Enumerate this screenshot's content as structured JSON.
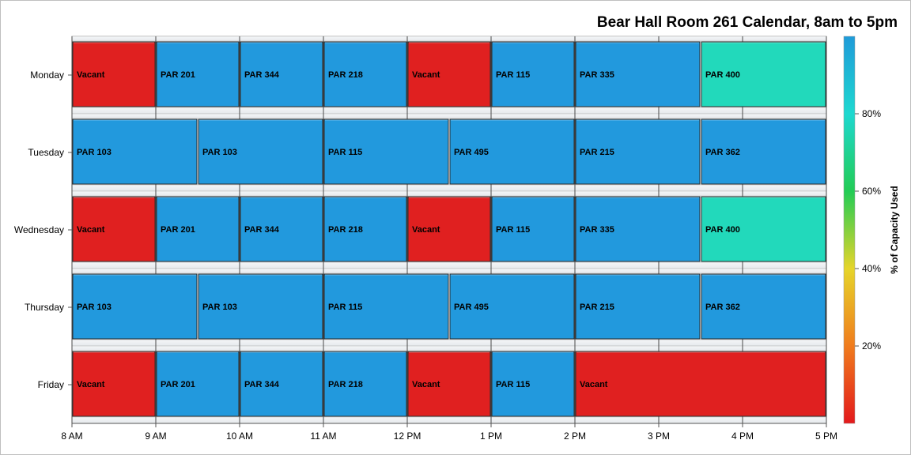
{
  "chart_data": {
    "type": "bar",
    "orientation": "horizontal-timeline",
    "title": "Bear Hall Room 261 Calendar, 8am to 5pm",
    "days": [
      "Monday",
      "Tuesday",
      "Wednesday",
      "Thursday",
      "Friday"
    ],
    "x_ticks": [
      {
        "hour": 8,
        "label": "8 AM"
      },
      {
        "hour": 9,
        "label": "9 AM"
      },
      {
        "hour": 10,
        "label": "10 AM"
      },
      {
        "hour": 11,
        "label": "11 AM"
      },
      {
        "hour": 12,
        "label": "12 PM"
      },
      {
        "hour": 13,
        "label": "1 PM"
      },
      {
        "hour": 14,
        "label": "2 PM"
      },
      {
        "hour": 15,
        "label": "3 PM"
      },
      {
        "hour": 16,
        "label": "4 PM"
      },
      {
        "hour": 17,
        "label": "5 PM"
      }
    ],
    "xlim": [
      8,
      17
    ],
    "colorbar": {
      "title": "% of Capacity Used",
      "range": [
        0,
        100
      ],
      "ticks": [
        {
          "value": 20,
          "label": "20%"
        },
        {
          "value": 40,
          "label": "40%"
        },
        {
          "value": 60,
          "label": "60%"
        },
        {
          "value": 80,
          "label": "80%"
        }
      ],
      "gradient": [
        "#e31a1c",
        "#f07c1d",
        "#e6d52a",
        "#22cc55",
        "#1ed8d0",
        "#1f9bd9"
      ]
    },
    "colors": {
      "vacant": "#e02020",
      "full": "#2299dd",
      "mid": "#22d9bb"
    },
    "schedule": [
      {
        "day": "Monday",
        "blocks": [
          {
            "start": 8,
            "end": 9,
            "label": "Vacant",
            "capacity": 0
          },
          {
            "start": 9,
            "end": 10,
            "label": "PAR 201",
            "capacity": 100
          },
          {
            "start": 10,
            "end": 11,
            "label": "PAR 344",
            "capacity": 100
          },
          {
            "start": 11,
            "end": 12,
            "label": "PAR 218",
            "capacity": 100
          },
          {
            "start": 12,
            "end": 13,
            "label": "Vacant",
            "capacity": 0
          },
          {
            "start": 13,
            "end": 14,
            "label": "PAR 115",
            "capacity": 100
          },
          {
            "start": 14,
            "end": 15.5,
            "label": "PAR 335",
            "capacity": 100
          },
          {
            "start": 15.5,
            "end": 17,
            "label": "PAR 400",
            "capacity": 85
          }
        ]
      },
      {
        "day": "Tuesday",
        "blocks": [
          {
            "start": 8,
            "end": 9.5,
            "label": "PAR 103",
            "capacity": 100
          },
          {
            "start": 9.5,
            "end": 11,
            "label": "PAR 103",
            "capacity": 100
          },
          {
            "start": 11,
            "end": 12.5,
            "label": "PAR 115",
            "capacity": 100
          },
          {
            "start": 12.5,
            "end": 14,
            "label": "PAR 495",
            "capacity": 100
          },
          {
            "start": 14,
            "end": 15.5,
            "label": "PAR 215",
            "capacity": 100
          },
          {
            "start": 15.5,
            "end": 17,
            "label": "PAR 362",
            "capacity": 100
          }
        ]
      },
      {
        "day": "Wednesday",
        "blocks": [
          {
            "start": 8,
            "end": 9,
            "label": "Vacant",
            "capacity": 0
          },
          {
            "start": 9,
            "end": 10,
            "label": "PAR 201",
            "capacity": 100
          },
          {
            "start": 10,
            "end": 11,
            "label": "PAR 344",
            "capacity": 100
          },
          {
            "start": 11,
            "end": 12,
            "label": "PAR 218",
            "capacity": 100
          },
          {
            "start": 12,
            "end": 13,
            "label": "Vacant",
            "capacity": 0
          },
          {
            "start": 13,
            "end": 14,
            "label": "PAR 115",
            "capacity": 100
          },
          {
            "start": 14,
            "end": 15.5,
            "label": "PAR 335",
            "capacity": 100
          },
          {
            "start": 15.5,
            "end": 17,
            "label": "PAR 400",
            "capacity": 85
          }
        ]
      },
      {
        "day": "Thursday",
        "blocks": [
          {
            "start": 8,
            "end": 9.5,
            "label": "PAR 103",
            "capacity": 100
          },
          {
            "start": 9.5,
            "end": 11,
            "label": "PAR 103",
            "capacity": 100
          },
          {
            "start": 11,
            "end": 12.5,
            "label": "PAR 115",
            "capacity": 100
          },
          {
            "start": 12.5,
            "end": 14,
            "label": "PAR 495",
            "capacity": 100
          },
          {
            "start": 14,
            "end": 15.5,
            "label": "PAR 215",
            "capacity": 100
          },
          {
            "start": 15.5,
            "end": 17,
            "label": "PAR 362",
            "capacity": 100
          }
        ]
      },
      {
        "day": "Friday",
        "blocks": [
          {
            "start": 8,
            "end": 9,
            "label": "Vacant",
            "capacity": 0
          },
          {
            "start": 9,
            "end": 10,
            "label": "PAR 201",
            "capacity": 100
          },
          {
            "start": 10,
            "end": 11,
            "label": "PAR 344",
            "capacity": 100
          },
          {
            "start": 11,
            "end": 12,
            "label": "PAR 218",
            "capacity": 100
          },
          {
            "start": 12,
            "end": 13,
            "label": "Vacant",
            "capacity": 0
          },
          {
            "start": 13,
            "end": 14,
            "label": "PAR 115",
            "capacity": 100
          },
          {
            "start": 14,
            "end": 17,
            "label": "Vacant",
            "capacity": 0
          }
        ]
      }
    ],
    "grid": true,
    "legend": "right"
  }
}
